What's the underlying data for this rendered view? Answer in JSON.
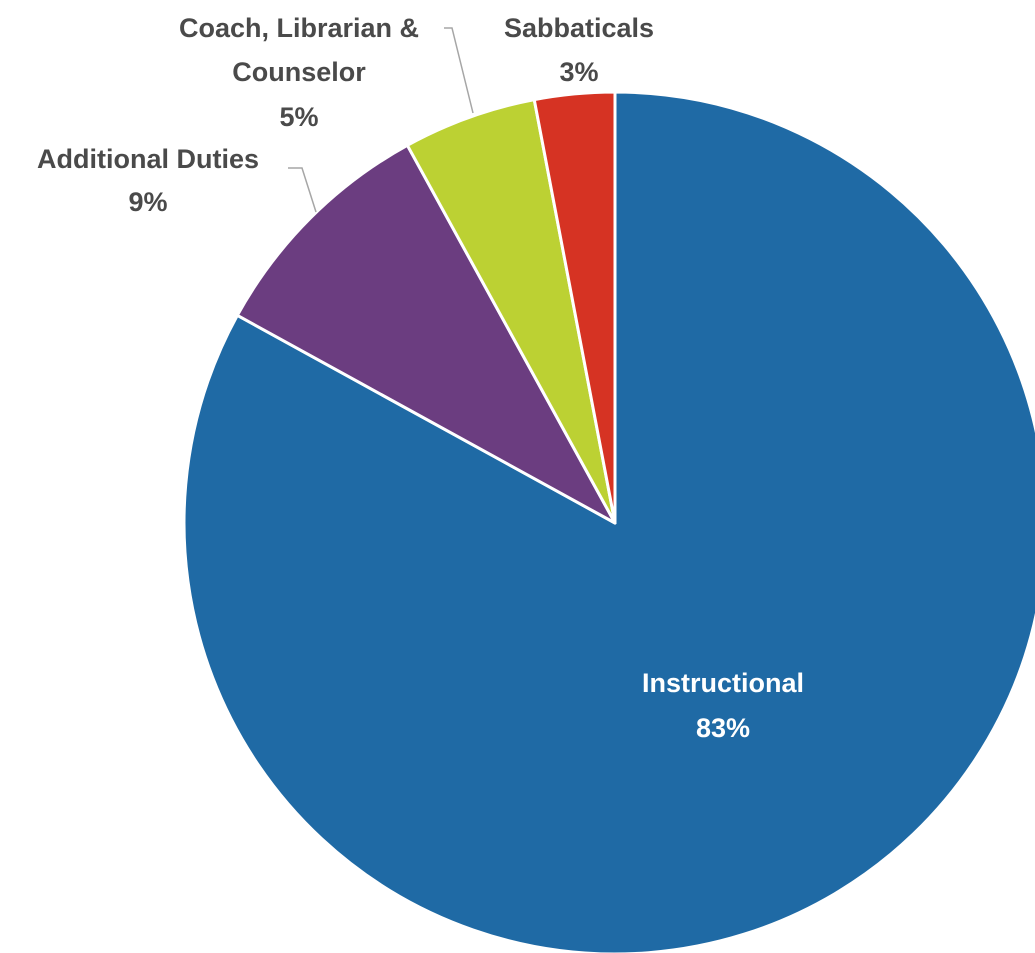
{
  "chart_data": {
    "type": "pie",
    "title": "",
    "slices": [
      {
        "label": "Instructional",
        "percent_label": "83%",
        "value": 83,
        "color": "#1f6aa5"
      },
      {
        "label": "Additional Duties",
        "percent_label": "9%",
        "value": 9,
        "color": "#6b3d80"
      },
      {
        "label": "Coach, Librarian & Counselor",
        "label_lines": [
          "Coach, Librarian &",
          "Counselor"
        ],
        "percent_label": "5%",
        "value": 5,
        "color": "#bcd133"
      },
      {
        "label": "Sabbaticals",
        "percent_label": "3%",
        "value": 3,
        "color": "#d63323"
      }
    ],
    "start_angle_deg": 0,
    "direction": "clockwise",
    "legend": "none"
  }
}
